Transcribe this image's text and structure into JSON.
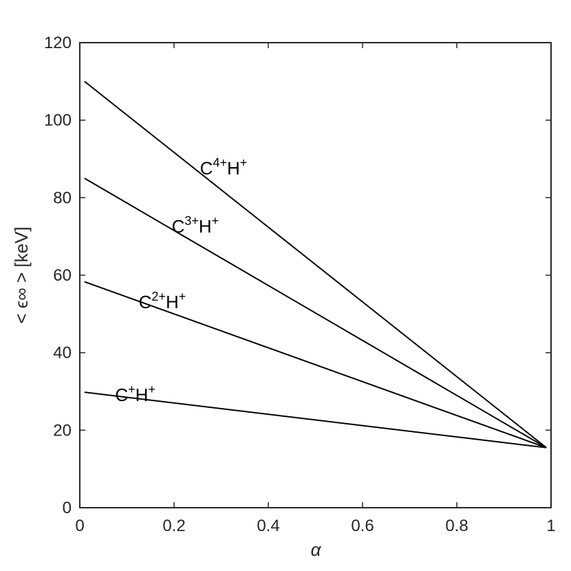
{
  "chart_data": {
    "type": "line",
    "xlabel": "α",
    "ylabel": "< ϵ∞ > [keV]",
    "xlim": [
      0,
      1
    ],
    "ylim": [
      0,
      120
    ],
    "xticks": [
      0,
      0.2,
      0.4,
      0.6,
      0.8,
      1
    ],
    "xtick_labels": [
      "0",
      "0.2",
      "0.4",
      "0.6",
      "0.8",
      "1"
    ],
    "yticks": [
      0,
      20,
      40,
      60,
      80,
      100,
      120
    ],
    "ytick_labels": [
      "0",
      "20",
      "40",
      "60",
      "80",
      "100",
      "120"
    ],
    "grid": false,
    "box": true,
    "line_color": "#000000",
    "axis_color": "#262626",
    "series": [
      {
        "label": {
          "base": "C",
          "charge": "4+",
          "ion": "H",
          "ion_charge": "+"
        },
        "x": [
          0.01,
          0.99
        ],
        "y": [
          110,
          15.5
        ],
        "label_at": [
          0.255,
          86
        ]
      },
      {
        "label": {
          "base": "C",
          "charge": "3+",
          "ion": "H",
          "ion_charge": "+"
        },
        "x": [
          0.01,
          0.99
        ],
        "y": [
          85,
          15.5
        ],
        "label_at": [
          0.195,
          71
        ]
      },
      {
        "label": {
          "base": "C",
          "charge": "2+",
          "ion": "H",
          "ion_charge": "+"
        },
        "x": [
          0.01,
          0.99
        ],
        "y": [
          58.3,
          15.5
        ],
        "label_at": [
          0.125,
          51.5
        ]
      },
      {
        "label": {
          "base": "C",
          "charge": "+",
          "ion": "H",
          "ion_charge": "+"
        },
        "x": [
          0.01,
          0.99
        ],
        "y": [
          29.8,
          15.5
        ],
        "label_at": [
          0.075,
          27.5
        ]
      }
    ]
  }
}
